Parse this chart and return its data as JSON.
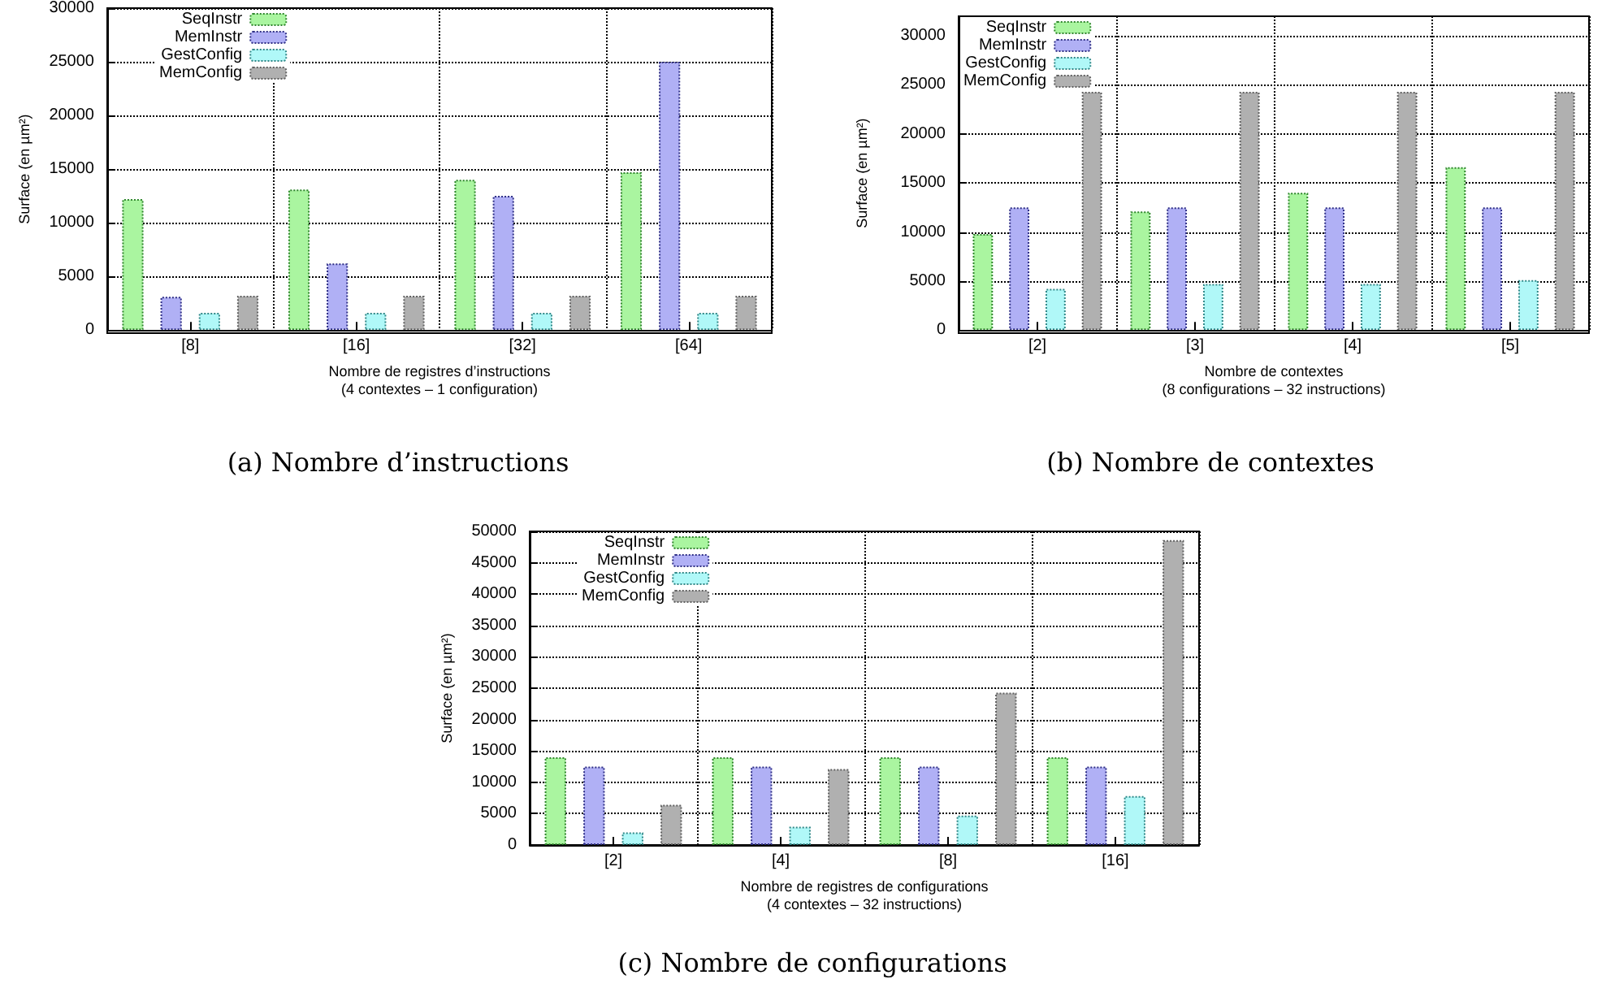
{
  "chart_data": [
    {
      "type": "bar",
      "title": "(a) Nombre d’instructions",
      "xlabel": "Nombre de registres d’instructions\n(4 contextes – 1 configuration)",
      "ylabel": "Surface (en µm²)",
      "categories": [
        "[8]",
        "[16]",
        "[32]",
        "[64]"
      ],
      "series": [
        {
          "name": "SeqInstr",
          "color": "#aaf5a0",
          "values": [
            12200,
            13100,
            14000,
            14700
          ]
        },
        {
          "name": "MemInstr",
          "color": "#b0b0f5",
          "values": [
            3100,
            6200,
            12500,
            25000
          ]
        },
        {
          "name": "GestConfig",
          "color": "#b0f8f8",
          "values": [
            1600,
            1600,
            1600,
            1600
          ]
        },
        {
          "name": "MemConfig",
          "color": "#b0b0b0",
          "values": [
            3200,
            3200,
            3200,
            3200
          ]
        }
      ],
      "ylim": [
        0,
        30000
      ],
      "yticks": [
        0,
        5000,
        10000,
        15000,
        20000,
        25000,
        30000
      ],
      "grid": true,
      "legend": "top left"
    },
    {
      "type": "bar",
      "title": "(b) Nombre de contextes",
      "xlabel": "Nombre de contextes\n(8 configurations – 32 instructions)",
      "ylabel": "Surface (en µm²)",
      "categories": [
        "[2]",
        "[3]",
        "[4]",
        "[5]"
      ],
      "series": [
        {
          "name": "SeqInstr",
          "color": "#aaf5a0",
          "values": [
            9800,
            12100,
            14000,
            16600
          ]
        },
        {
          "name": "MemInstr",
          "color": "#b0b0f5",
          "values": [
            12500,
            12500,
            12500,
            12500
          ]
        },
        {
          "name": "GestConfig",
          "color": "#b0f8f8",
          "values": [
            4200,
            4700,
            4700,
            5100
          ]
        },
        {
          "name": "MemConfig",
          "color": "#b0b0b0",
          "values": [
            24300,
            24300,
            24300,
            24300
          ]
        }
      ],
      "ylim": [
        0,
        32000
      ],
      "yticks": [
        0,
        5000,
        10000,
        15000,
        20000,
        25000,
        30000
      ],
      "grid": true,
      "legend": "top left"
    },
    {
      "type": "bar",
      "title": "(c) Nombre de configurations",
      "xlabel": "Nombre de registres de configurations\n(4 contextes – 32 instructions)",
      "ylabel": "Surface (en µm²)",
      "categories": [
        "[2]",
        "[4]",
        "[8]",
        "[16]"
      ],
      "series": [
        {
          "name": "SeqInstr",
          "color": "#aaf5a0",
          "values": [
            14000,
            14000,
            14000,
            14000
          ]
        },
        {
          "name": "MemInstr",
          "color": "#b0b0f5",
          "values": [
            12500,
            12500,
            12500,
            12500
          ]
        },
        {
          "name": "GestConfig",
          "color": "#b0f8f8",
          "values": [
            2000,
            2900,
            4700,
            7800
          ]
        },
        {
          "name": "MemConfig",
          "color": "#b0b0b0",
          "values": [
            6400,
            12100,
            24300,
            48600
          ]
        }
      ],
      "ylim": [
        0,
        50000
      ],
      "yticks": [
        0,
        5000,
        10000,
        15000,
        20000,
        25000,
        30000,
        35000,
        40000,
        45000,
        50000
      ],
      "grid": true,
      "legend": "top left"
    }
  ]
}
